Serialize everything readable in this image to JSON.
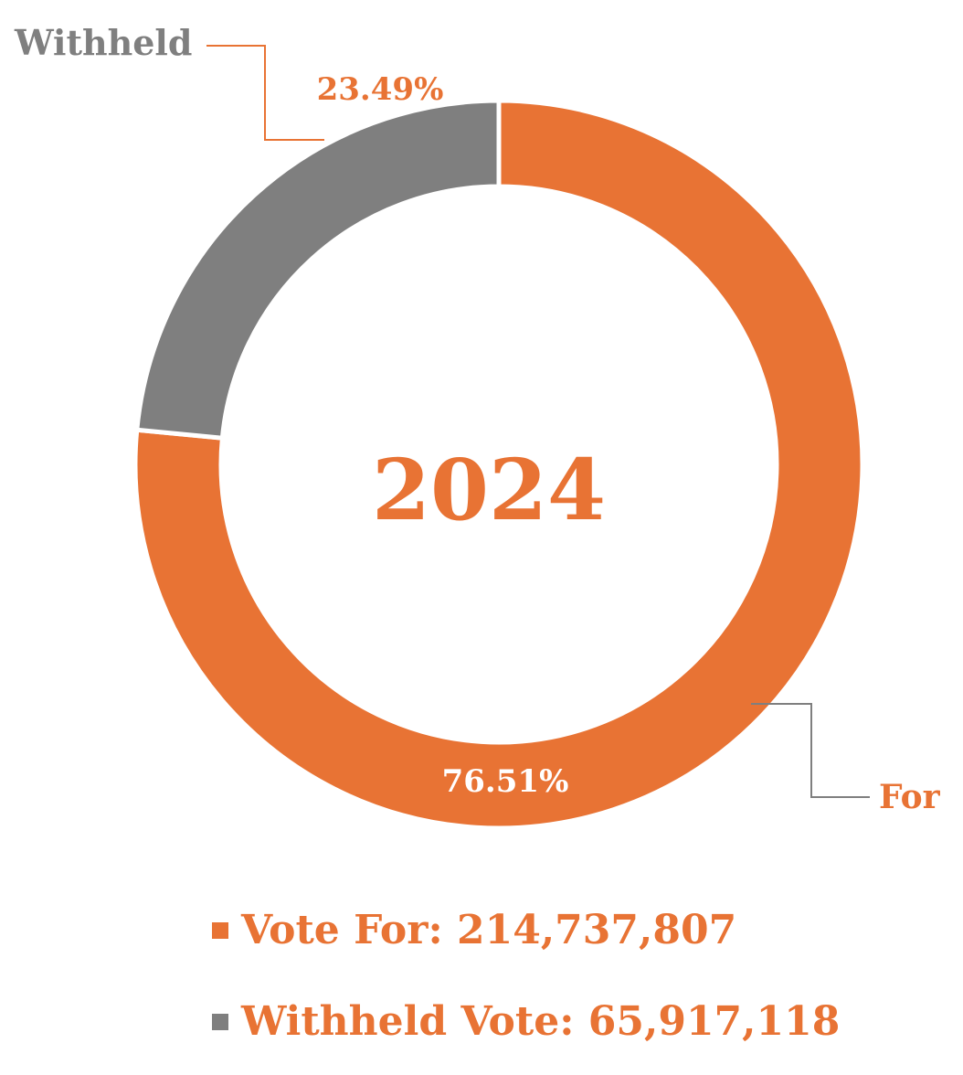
{
  "chart_data": {
    "type": "pie",
    "variant": "donut",
    "center_label": "2024",
    "slices": [
      {
        "label": "For",
        "percent": 76.51,
        "percent_label": "76.51%",
        "color": "#E87334"
      },
      {
        "label": "Withheld",
        "percent": 23.49,
        "percent_label": "23.49%",
        "color": "#7F7F7F"
      }
    ],
    "legend": [
      {
        "text": "Vote For: 214,737,807",
        "value": 214737807,
        "swatch_color": "#E87334"
      },
      {
        "text": "Withheld Vote: 65,917,118",
        "value": 65917118,
        "swatch_color": "#7F7F7F"
      }
    ],
    "legend_placement": "bottom",
    "text_color": "#E87334",
    "label_gray": "#7F7F7F"
  }
}
